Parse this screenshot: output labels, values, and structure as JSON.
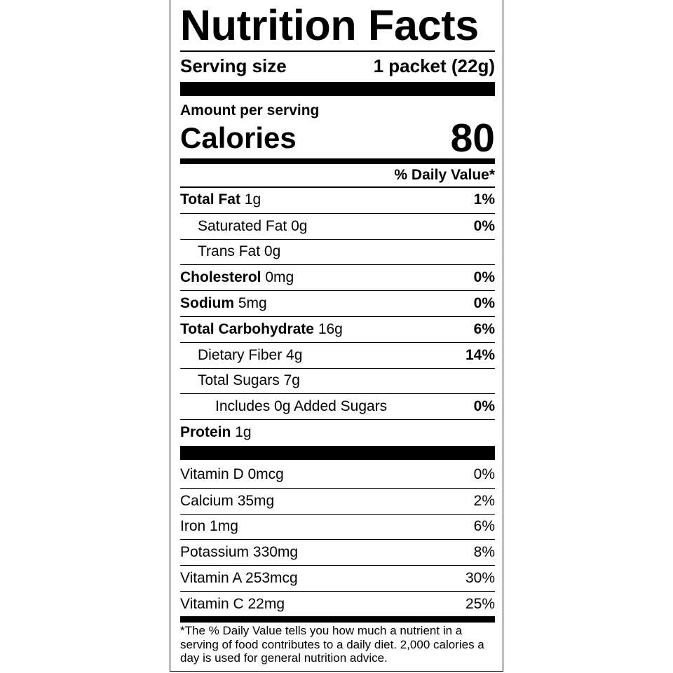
{
  "title": "Nutrition Facts",
  "serving": {
    "label": "Serving size",
    "value": "1 packet (22g)"
  },
  "amount_per_serving": "Amount per serving",
  "calories": {
    "label": "Calories",
    "value": "80"
  },
  "daily_value_header": "% Daily Value*",
  "nutrients": [
    {
      "name": "Total Fat",
      "amount": "1g",
      "dv": "1%",
      "bold": true,
      "indent": 0
    },
    {
      "name": "Saturated Fat",
      "amount": "0g",
      "dv": "0%",
      "bold": false,
      "indent": 1
    },
    {
      "name": "Trans Fat",
      "amount": "0g",
      "dv": "",
      "bold": false,
      "indent": 1
    },
    {
      "name": "Cholesterol",
      "amount": "0mg",
      "dv": "0%",
      "bold": true,
      "indent": 0
    },
    {
      "name": "Sodium",
      "amount": "5mg",
      "dv": "0%",
      "bold": true,
      "indent": 0
    },
    {
      "name": "Total Carbohydrate",
      "amount": "16g",
      "dv": "6%",
      "bold": true,
      "indent": 0
    },
    {
      "name": "Dietary Fiber",
      "amount": "4g",
      "dv": "14%",
      "bold": false,
      "indent": 1
    },
    {
      "name": "Total Sugars",
      "amount": "7g",
      "dv": "",
      "bold": false,
      "indent": 1
    },
    {
      "name": "Includes 0g Added Sugars",
      "amount": "",
      "dv": "0%",
      "bold": false,
      "indent": 2
    },
    {
      "name": "Protein",
      "amount": "1g",
      "dv": "",
      "bold": true,
      "indent": 0
    }
  ],
  "vitamins": [
    {
      "name": "Vitamin D",
      "amount": "0mcg",
      "dv": "0%"
    },
    {
      "name": "Calcium",
      "amount": "35mg",
      "dv": "2%"
    },
    {
      "name": "Iron",
      "amount": "1mg",
      "dv": "6%"
    },
    {
      "name": "Potassium",
      "amount": "330mg",
      "dv": "8%"
    },
    {
      "name": "Vitamin A",
      "amount": "253mcg",
      "dv": "30%"
    },
    {
      "name": "Vitamin C",
      "amount": "22mg",
      "dv": "25%"
    }
  ],
  "footnote": "*The % Daily Value tells you how much a nutrient in a serving of food contributes to a daily diet. 2,000 calories a day is used for general nutrition advice."
}
